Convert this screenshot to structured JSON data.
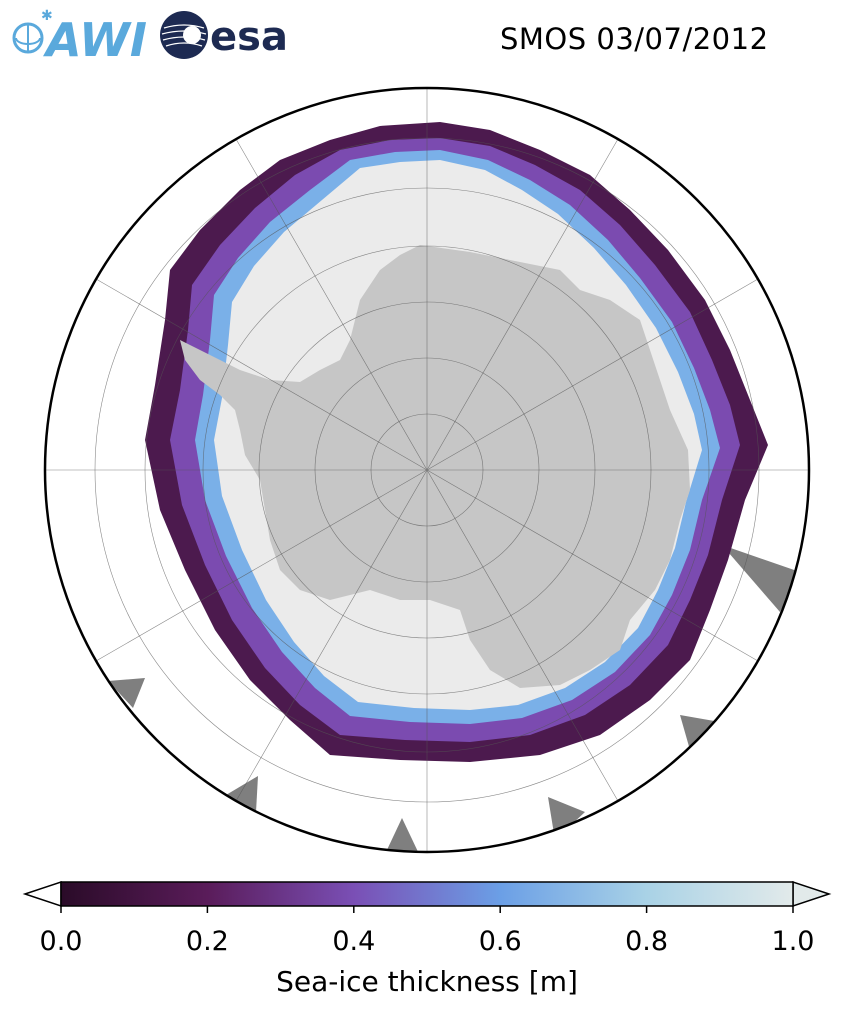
{
  "header": {
    "title": "SMOS 03/07/2012",
    "logos": [
      {
        "name": "AWI",
        "text": "AWI",
        "color": "#5aa9dc"
      },
      {
        "name": "esa",
        "text": "esa",
        "color": "#1d2a52"
      }
    ]
  },
  "map": {
    "projection": "south-polar-stereographic",
    "center_lat": -90,
    "gridlines": true,
    "land_color": "#c6c6c6",
    "open_water_color": "#ffffff",
    "no_data_color": "#7f7f7f",
    "thick_ice_color": "#ebebeb"
  },
  "colorbar": {
    "label": "Sea-ice thickness [m]",
    "ticks": [
      "0.0",
      "0.2",
      "0.4",
      "0.6",
      "0.8",
      "1.0"
    ],
    "vmin": 0.0,
    "vmax": 1.0,
    "extend": "both",
    "colors": [
      "#2a0b28",
      "#5a1c5a",
      "#7a4fb5",
      "#6b9fe6",
      "#a9d2e6",
      "#e2eaea"
    ]
  }
}
